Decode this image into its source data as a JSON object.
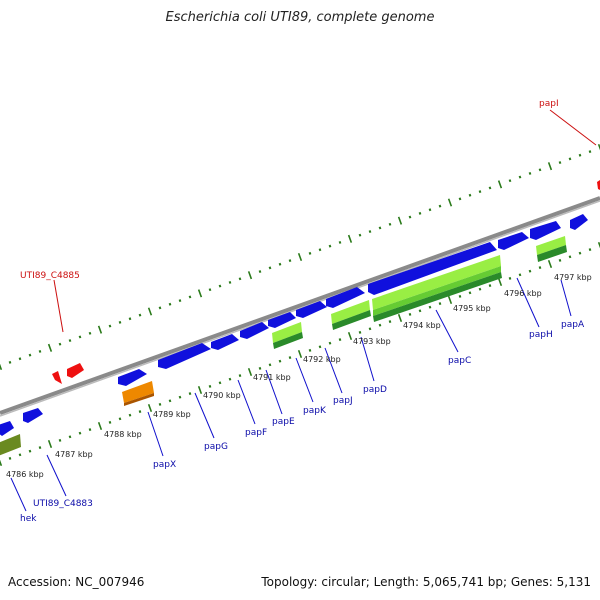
{
  "title": "Escherichia coli UTI89, complete genome",
  "footer": {
    "accession": "Accession: NC_007946",
    "topology": "Topology: circular; Length: 5,065,741 bp; Genes: 5,131"
  },
  "colors": {
    "backbone": "#8a8a8a",
    "tick": "#2a7a1a",
    "cds_blue": "#1010dd",
    "rna_red": "#ee1010",
    "orange": "#ee8800",
    "light_green": "#99ee44",
    "dark_green": "#2a8a2a",
    "olive": "#6a8a20",
    "label_blue": "#0a0aa8",
    "label_red": "#cc1010"
  },
  "tick_labels": [
    "4786 kbp",
    "4787 kbp",
    "4788 kbp",
    "4789 kbp",
    "4790 kbp",
    "4791 kbp",
    "4792 kbp",
    "4793 kbp",
    "4794 kbp",
    "4795 kbp",
    "4796 kbp",
    "4797 kbp"
  ],
  "gene_labels": [
    "hek",
    "UTI89_C4883",
    "papX",
    "papG",
    "papF",
    "papE",
    "papK",
    "papJ",
    "papD",
    "papC",
    "papH",
    "papA"
  ],
  "red_labels": [
    "UTI89_C4885",
    "papI"
  ]
}
